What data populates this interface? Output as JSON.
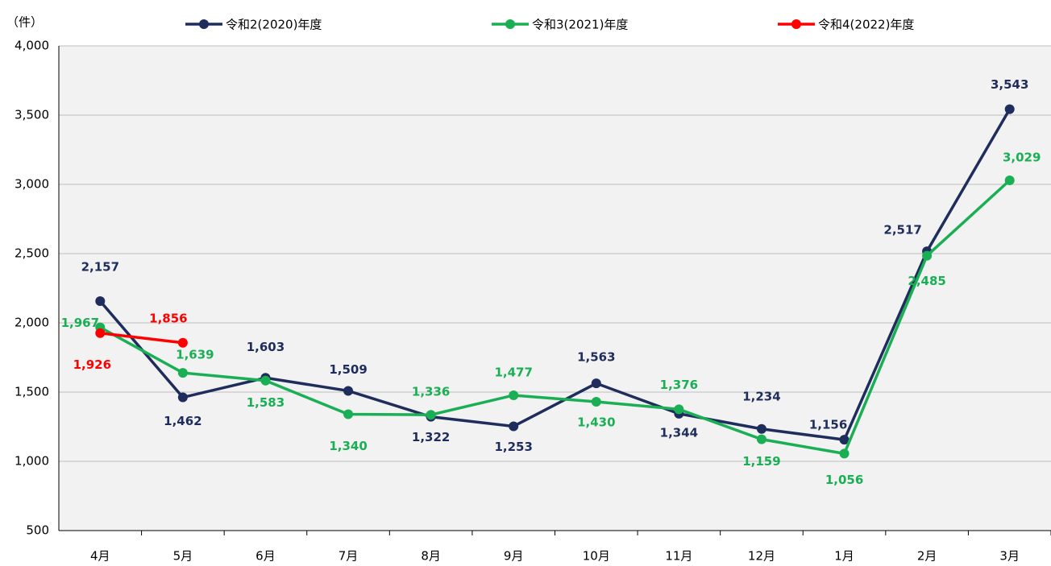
{
  "chart_data": {
    "type": "line",
    "y_unit": "（件）",
    "categories": [
      "4月",
      "5月",
      "6月",
      "7月",
      "8月",
      "9月",
      "10月",
      "11月",
      "12月",
      "1月",
      "2月",
      "3月"
    ],
    "ylim": [
      500,
      4000
    ],
    "yticks": [
      {
        "value": 500,
        "label": "500"
      },
      {
        "value": 1000,
        "label": "1,000"
      },
      {
        "value": 1500,
        "label": "1,500"
      },
      {
        "value": 2000,
        "label": "2,000"
      },
      {
        "value": 2500,
        "label": "2,500"
      },
      {
        "value": 3000,
        "label": "3,000"
      },
      {
        "value": 3500,
        "label": "3,500"
      },
      {
        "value": 4000,
        "label": "4,000"
      }
    ],
    "grid": true,
    "series": [
      {
        "name": "令和2(2020)年度",
        "color": "#1f2d5c",
        "values": [
          2157,
          1462,
          1603,
          1509,
          1322,
          1253,
          1563,
          1344,
          1234,
          1156,
          2517,
          3543
        ],
        "value_labels": [
          "2,157",
          "1,462",
          "1,603",
          "1,509",
          "1,322",
          "1,253",
          "1,563",
          "1,344",
          "1,234",
          "1,156",
          "2,517",
          "3,543"
        ]
      },
      {
        "name": "令和3(2021)年度",
        "color": "#1aaf54",
        "values": [
          1967,
          1639,
          1583,
          1340,
          1336,
          1477,
          1430,
          1376,
          1159,
          1056,
          2485,
          3029
        ],
        "value_labels": [
          "1,967",
          "1,639",
          "1,583",
          "1,340",
          "1,336",
          "1,477",
          "1,430",
          "1,376",
          "1,159",
          "1,056",
          "2,485",
          "3,029"
        ]
      },
      {
        "name": "令和4(2022)年度",
        "color": "#ff0000",
        "values": [
          1926,
          1856,
          null,
          null,
          null,
          null,
          null,
          null,
          null,
          null,
          null,
          null
        ],
        "value_labels": [
          "1,926",
          "1,856",
          null,
          null,
          null,
          null,
          null,
          null,
          null,
          null,
          null,
          null
        ]
      }
    ]
  }
}
